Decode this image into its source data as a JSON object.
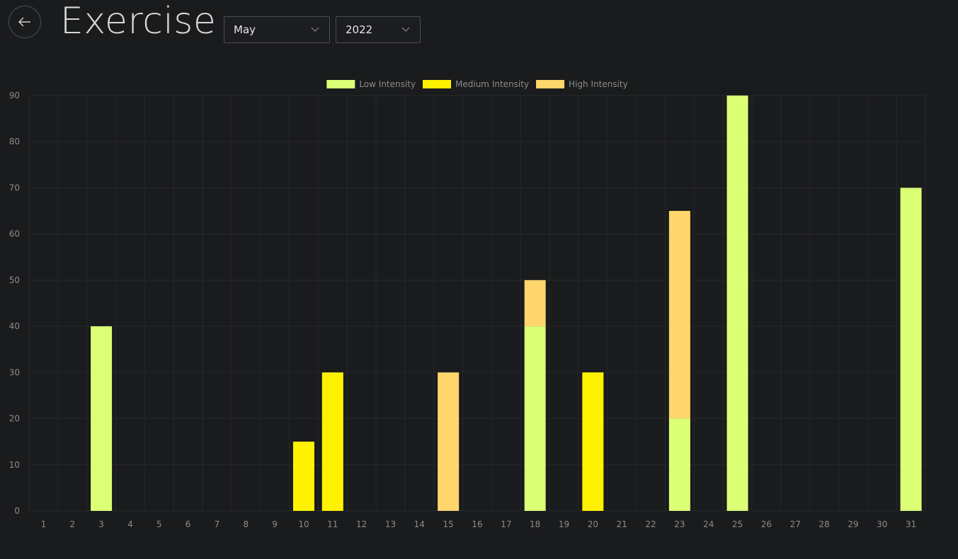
{
  "header": {
    "back_icon": "arrow-left-icon",
    "title": "Exercise",
    "month_select": {
      "value": "May",
      "icon": "chevron-down-icon"
    },
    "year_select": {
      "value": "2022",
      "icon": "chevron-down-icon"
    }
  },
  "colors": {
    "background": "#1a1b1d",
    "low": "#dbff75",
    "medium": "#fff200",
    "high": "#ffd66b",
    "tick_text": "#8c8c8c",
    "grid": "#26282b"
  },
  "chart_data": {
    "type": "bar",
    "stacked": true,
    "title": "",
    "xlabel": "",
    "ylabel": "",
    "ylim": [
      0,
      90
    ],
    "yticks": [
      0,
      10,
      20,
      30,
      40,
      50,
      60,
      70,
      80,
      90
    ],
    "grid": true,
    "legend_position": "top-center",
    "categories": [
      "1",
      "2",
      "3",
      "4",
      "5",
      "6",
      "7",
      "8",
      "9",
      "10",
      "11",
      "12",
      "13",
      "14",
      "15",
      "16",
      "17",
      "18",
      "19",
      "20",
      "21",
      "22",
      "23",
      "24",
      "25",
      "26",
      "27",
      "28",
      "29",
      "30",
      "31"
    ],
    "series": [
      {
        "name": "Low Intensity",
        "color": "#dbff75",
        "values": [
          0,
          0,
          40,
          0,
          0,
          0,
          0,
          0,
          0,
          0,
          0,
          0,
          0,
          0,
          0,
          0,
          0,
          40,
          0,
          0,
          0,
          0,
          20,
          0,
          90,
          0,
          0,
          0,
          0,
          0,
          70
        ]
      },
      {
        "name": "Medium Intensity",
        "color": "#fff200",
        "values": [
          0,
          0,
          0,
          0,
          0,
          0,
          0,
          0,
          0,
          15,
          30,
          0,
          0,
          0,
          0,
          0,
          0,
          0,
          0,
          30,
          0,
          0,
          0,
          0,
          0,
          0,
          0,
          0,
          0,
          0,
          0
        ]
      },
      {
        "name": "High Intensity",
        "color": "#ffd66b",
        "values": [
          0,
          0,
          0,
          0,
          0,
          0,
          0,
          0,
          0,
          0,
          0,
          0,
          0,
          0,
          30,
          0,
          0,
          10,
          0,
          0,
          0,
          0,
          45,
          0,
          0,
          0,
          0,
          0,
          0,
          0,
          0
        ]
      }
    ]
  }
}
